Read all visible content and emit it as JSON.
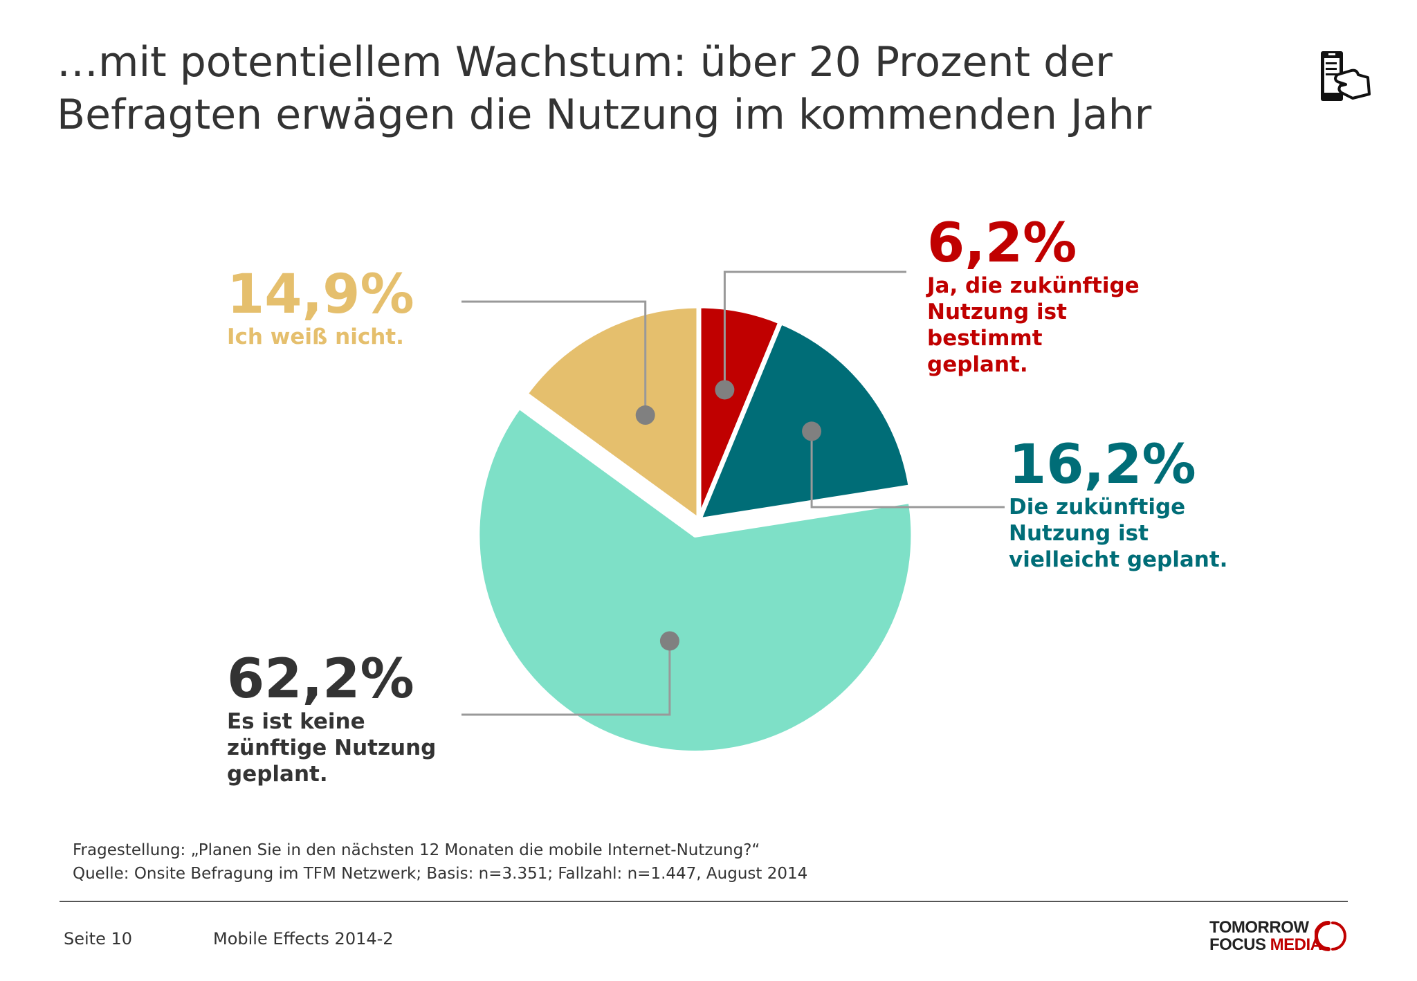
{
  "header": {
    "title_line1": "…mit potentiellem Wachstum: über 20 Prozent der",
    "title_line2": "Befragten erwägen die Nutzung im kommenden Jahr",
    "icon": "mobile-hand-icon"
  },
  "chart_data": {
    "type": "pie",
    "slices": [
      {
        "value": 6.2,
        "label": "6,2%",
        "desc": [
          "Ja, die zukünftige",
          "Nutzung ist",
          "bestimmt",
          "geplant."
        ],
        "color": "#c00000",
        "explode": false
      },
      {
        "value": 16.2,
        "label": "16,2%",
        "desc": [
          "Die zukünftige",
          "Nutzung ist",
          "vielleicht geplant."
        ],
        "color": "#006d77",
        "explode": false
      },
      {
        "value": 62.2,
        "label": "62,2%",
        "desc": [
          "Es ist keine",
          "zünftige Nutzung",
          "geplant."
        ],
        "color": "#7ee0c7",
        "explode": true
      },
      {
        "value": 14.9,
        "label": "14,9%",
        "desc": [
          "Ich weiß nicht."
        ],
        "color": "#e5bf6d",
        "explode": false
      }
    ],
    "start": "12 o'clock",
    "direction": "clockwise",
    "label_text_colors": [
      "#c00000",
      "#006d77",
      "#333333",
      "#e5bf6d"
    ],
    "marker_color": "#808080",
    "leader_color": "#999999"
  },
  "notes": {
    "question": "Fragestellung: „Planen Sie in den nächsten 12 Monaten die mobile Internet-Nutzung?“",
    "source": "Quelle: Onsite Befragung im TFM Netzwerk; Basis: n=3.351; Fallzahl: n=1.447, August 2014"
  },
  "footer": {
    "page": "Seite 10",
    "report": "Mobile Effects 2014-2",
    "logo_line1": "TOMORROW",
    "logo_line2a": "FOCUS",
    "logo_line2b": "MEDIA"
  }
}
